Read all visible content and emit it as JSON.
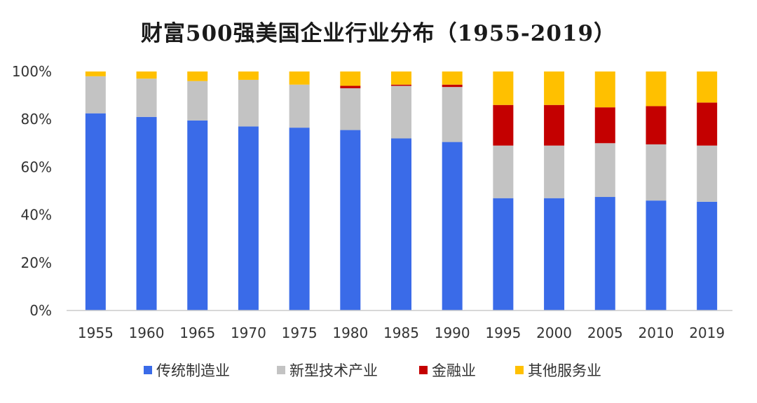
{
  "chart_data": {
    "type": "bar",
    "stacked": true,
    "title": "财富500强美国企业行业分布（1955-2019）",
    "xlabel": "",
    "ylabel": "",
    "ylim": [
      0,
      100
    ],
    "yticks": [
      "0%",
      "20%",
      "40%",
      "60%",
      "80%",
      "100%"
    ],
    "grid": false,
    "legend_position": "bottom",
    "categories": [
      "1955",
      "1960",
      "1965",
      "1970",
      "1975",
      "1980",
      "1985",
      "1990",
      "1995",
      "2000",
      "2005",
      "2010",
      "2019"
    ],
    "series": [
      {
        "name": "传统制造业",
        "color": "#3a6be8",
        "values": [
          82.5,
          81,
          79.5,
          77,
          76.5,
          75.5,
          72,
          70.5,
          47,
          47,
          47.5,
          46,
          45.5
        ]
      },
      {
        "name": "新型技术产业",
        "color": "#c3c3c3",
        "values": [
          15.5,
          16,
          16.5,
          19.5,
          18,
          17.5,
          22,
          23,
          22,
          22,
          22.5,
          23.5,
          23.5
        ]
      },
      {
        "name": "金融业",
        "color": "#c40000",
        "values": [
          0,
          0,
          0,
          0,
          0,
          1,
          0.5,
          1,
          17,
          17,
          15,
          16,
          18
        ]
      },
      {
        "name": "其他服务业",
        "color": "#ffc000",
        "values": [
          2,
          3,
          4,
          3.5,
          5.5,
          6,
          5.5,
          5.5,
          14,
          14,
          15,
          14.5,
          13
        ]
      }
    ]
  }
}
